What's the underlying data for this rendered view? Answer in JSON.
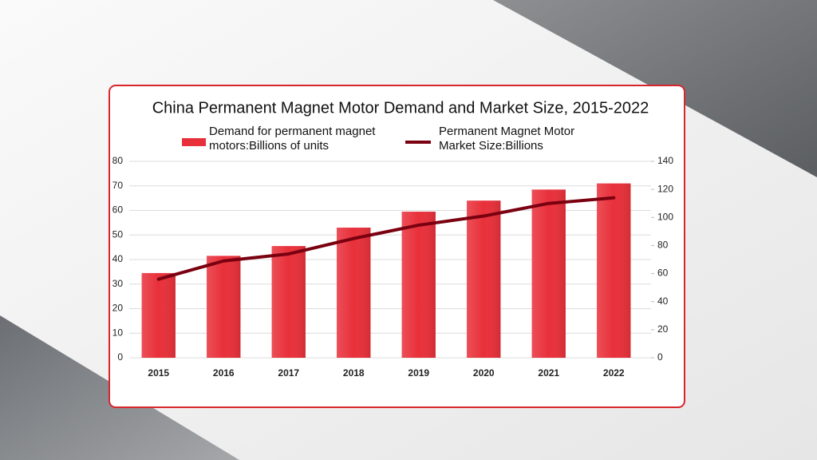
{
  "chart_data": {
    "type": "bar",
    "title": "China Permanent Magnet Motor Demand and Market Size, 2015-2022",
    "categories": [
      "2015",
      "2016",
      "2017",
      "2018",
      "2019",
      "2020",
      "2021",
      "2022"
    ],
    "series": [
      {
        "name": "Demand for permanent magnet motors:Billions of units",
        "color": "#e8303a",
        "type": "bar",
        "values": [
          34.5,
          41.5,
          45.5,
          53,
          59.5,
          64,
          68.5,
          71
        ]
      },
      {
        "name": "Permanent Magnet Motor Market Size:Billions",
        "color": "#7a0010",
        "type": "line",
        "axis": "y2",
        "values": [
          56,
          69,
          74,
          85,
          94.5,
          101,
          110,
          114
        ]
      }
    ],
    "ylim": [
      0,
      80
    ],
    "yticks": [
      0,
      10,
      20,
      30,
      40,
      50,
      60,
      70,
      80
    ],
    "y2lim": [
      0,
      140
    ],
    "y2ticks": [
      0,
      20,
      40,
      60,
      80,
      100,
      120,
      140
    ],
    "grid": true
  }
}
